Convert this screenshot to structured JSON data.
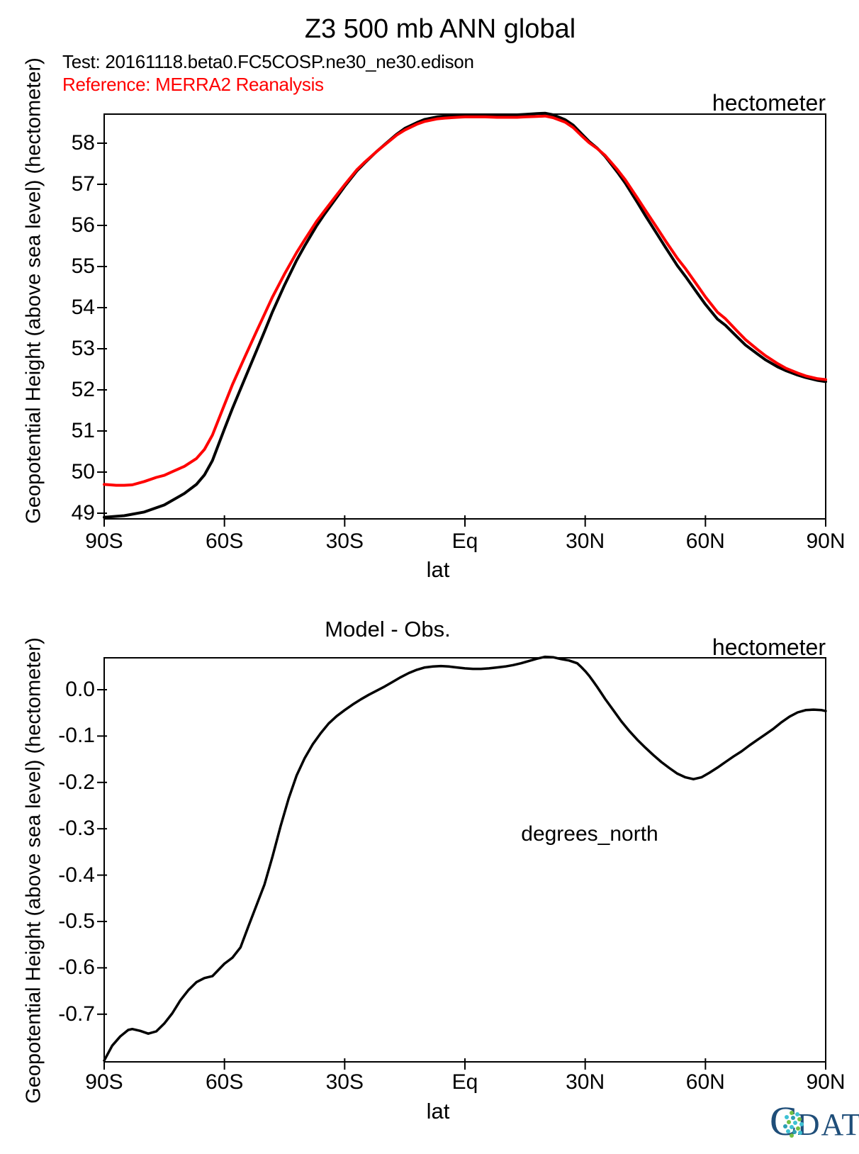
{
  "page": {
    "title": "Z3 500 mb ANN global",
    "test_label": "Test: 20161118.beta0.FC5COSP.ne30_ne30.edison",
    "reference_label": "Reference: MERRA2 Reanalysis",
    "colors": {
      "test": "#000000",
      "reference": "#ff0000",
      "cdat_navy": "#1f4e79",
      "cdat_cyan": "#3ec1d3",
      "cdat_green": "#72bf44",
      "cdat_teal": "#2d9fb3"
    }
  },
  "logo": {
    "c": "C",
    "rest": "DAT"
  },
  "chart_data": [
    {
      "type": "line",
      "title": "Z3 500 mb ANN global",
      "unit_label": "hectometer",
      "xlabel": "lat",
      "ylabel": "Geopotential Height (above sea level) (hectometer)",
      "grid": false,
      "legend_position": "none",
      "xlim": [
        -90,
        90
      ],
      "ylim": [
        48.862,
        58.707
      ],
      "x_tick_labels": [
        "90S",
        "60S",
        "30S",
        "Eq",
        "30N",
        "60N",
        "90N"
      ],
      "x_tick_values": [
        -90,
        -60,
        -30,
        0,
        30,
        60,
        90
      ],
      "y_tick_labels": [
        "58",
        "57",
        "56",
        "55",
        "54",
        "53",
        "52",
        "51",
        "50",
        "49"
      ],
      "y_tick_values": [
        58,
        57,
        56,
        55,
        54,
        53,
        52,
        51,
        50,
        49
      ],
      "series": [
        {
          "name": "Test: 20161118.beta0.FC5COSP.ne30_ne30.edison",
          "key": "test-curve",
          "color": "#000000",
          "points": [
            [
              -90,
              48.9
            ],
            [
              -85,
              48.94
            ],
            [
              -80,
              49.03
            ],
            [
              -75,
              49.2
            ],
            [
              -70,
              49.48
            ],
            [
              -67,
              49.7
            ],
            [
              -65,
              49.93
            ],
            [
              -63,
              50.28
            ],
            [
              -60,
              51.05
            ],
            [
              -58,
              51.55
            ],
            [
              -55,
              52.25
            ],
            [
              -52,
              52.95
            ],
            [
              -50,
              53.42
            ],
            [
              -48,
              53.9
            ],
            [
              -45,
              54.55
            ],
            [
              -42,
              55.15
            ],
            [
              -40,
              55.5
            ],
            [
              -37,
              55.99
            ],
            [
              -35,
              56.28
            ],
            [
              -32,
              56.68
            ],
            [
              -30,
              56.95
            ],
            [
              -27,
              57.32
            ],
            [
              -25,
              57.52
            ],
            [
              -22,
              57.8
            ],
            [
              -20,
              57.97
            ],
            [
              -17,
              58.22
            ],
            [
              -15,
              58.36
            ],
            [
              -12,
              58.5
            ],
            [
              -10,
              58.58
            ],
            [
              -7,
              58.64
            ],
            [
              -5,
              58.66
            ],
            [
              -2,
              58.68
            ],
            [
              0,
              58.69
            ],
            [
              3,
              58.69
            ],
            [
              5,
              58.69
            ],
            [
              8,
              58.68
            ],
            [
              10,
              58.68
            ],
            [
              13,
              58.69
            ],
            [
              15,
              58.7
            ],
            [
              18,
              58.72
            ],
            [
              20,
              58.73
            ],
            [
              22,
              58.69
            ],
            [
              25,
              58.57
            ],
            [
              27,
              58.44
            ],
            [
              29,
              58.24
            ],
            [
              31,
              58.04
            ],
            [
              33,
              57.88
            ],
            [
              35,
              57.68
            ],
            [
              38,
              57.3
            ],
            [
              40,
              57.03
            ],
            [
              43,
              56.56
            ],
            [
              45,
              56.24
            ],
            [
              48,
              55.78
            ],
            [
              50,
              55.47
            ],
            [
              53,
              55.02
            ],
            [
              55,
              54.76
            ],
            [
              58,
              54.35
            ],
            [
              60,
              54.08
            ],
            [
              63,
              53.72
            ],
            [
              65,
              53.57
            ],
            [
              68,
              53.28
            ],
            [
              70,
              53.09
            ],
            [
              73,
              52.87
            ],
            [
              75,
              52.73
            ],
            [
              78,
              52.56
            ],
            [
              80,
              52.47
            ],
            [
              83,
              52.36
            ],
            [
              85,
              52.3
            ],
            [
              88,
              52.23
            ],
            [
              90,
              52.2
            ]
          ]
        },
        {
          "name": "Reference: MERRA2 Reanalysis",
          "key": "reference-curve",
          "color": "#ff0000",
          "points": [
            [
              -90,
              49.7
            ],
            [
              -87,
              49.68
            ],
            [
              -85,
              49.68
            ],
            [
              -83,
              49.69
            ],
            [
              -80,
              49.77
            ],
            [
              -77,
              49.87
            ],
            [
              -75,
              49.92
            ],
            [
              -73,
              50.01
            ],
            [
              -70,
              50.14
            ],
            [
              -67,
              50.33
            ],
            [
              -65,
              50.55
            ],
            [
              -63,
              50.9
            ],
            [
              -60,
              51.64
            ],
            [
              -58,
              52.13
            ],
            [
              -55,
              52.78
            ],
            [
              -52,
              53.42
            ],
            [
              -50,
              53.84
            ],
            [
              -48,
              54.26
            ],
            [
              -45,
              54.82
            ],
            [
              -42,
              55.34
            ],
            [
              -40,
              55.65
            ],
            [
              -37,
              56.1
            ],
            [
              -35,
              56.36
            ],
            [
              -32,
              56.74
            ],
            [
              -30,
              56.99
            ],
            [
              -27,
              57.35
            ],
            [
              -25,
              57.54
            ],
            [
              -22,
              57.8
            ],
            [
              -20,
              57.96
            ],
            [
              -17,
              58.2
            ],
            [
              -15,
              58.32
            ],
            [
              -12,
              58.46
            ],
            [
              -10,
              58.53
            ],
            [
              -7,
              58.59
            ],
            [
              -5,
              58.61
            ],
            [
              -2,
              58.63
            ],
            [
              0,
              58.64
            ],
            [
              3,
              58.64
            ],
            [
              5,
              58.64
            ],
            [
              8,
              58.63
            ],
            [
              10,
              58.63
            ],
            [
              13,
              58.63
            ],
            [
              15,
              58.64
            ],
            [
              18,
              58.65
            ],
            [
              20,
              58.66
            ],
            [
              22,
              58.62
            ],
            [
              25,
              58.51
            ],
            [
              27,
              58.38
            ],
            [
              29,
              58.19
            ],
            [
              31,
              58.01
            ],
            [
              33,
              57.87
            ],
            [
              35,
              57.7
            ],
            [
              38,
              57.36
            ],
            [
              40,
              57.11
            ],
            [
              43,
              56.67
            ],
            [
              45,
              56.37
            ],
            [
              48,
              55.93
            ],
            [
              50,
              55.63
            ],
            [
              53,
              55.2
            ],
            [
              55,
              54.95
            ],
            [
              58,
              54.54
            ],
            [
              60,
              54.26
            ],
            [
              63,
              53.89
            ],
            [
              65,
              53.73
            ],
            [
              68,
              53.42
            ],
            [
              70,
              53.22
            ],
            [
              73,
              52.98
            ],
            [
              75,
              52.83
            ],
            [
              78,
              52.64
            ],
            [
              80,
              52.53
            ],
            [
              83,
              52.41
            ],
            [
              85,
              52.34
            ],
            [
              88,
              52.27
            ],
            [
              90,
              52.25
            ]
          ]
        }
      ]
    },
    {
      "type": "line",
      "title": "Model - Obs.",
      "unit_label": "hectometer",
      "xlabel": "lat",
      "ylabel": "Geopotential Height (above sea level) (hectometer)",
      "annotation": "degrees_north",
      "grid": false,
      "legend_position": "none",
      "xlim": [
        -90,
        90
      ],
      "ylim": [
        -0.8028,
        0.0688
      ],
      "x_tick_labels": [
        "90S",
        "60S",
        "30S",
        "Eq",
        "30N",
        "60N",
        "90N"
      ],
      "x_tick_values": [
        -90,
        -60,
        -30,
        0,
        30,
        60,
        90
      ],
      "y_tick_labels": [
        "0.0",
        "-0.1",
        "-0.2",
        "-0.3",
        "-0.4",
        "-0.5",
        "-0.6",
        "-0.7"
      ],
      "y_tick_values": [
        0,
        -0.1,
        -0.2,
        -0.3,
        -0.4,
        -0.5,
        -0.6,
        -0.7
      ],
      "series": [
        {
          "name": "Model - Obs.",
          "key": "difference-curve",
          "color": "#000000",
          "points": [
            [
              -90,
              -0.8
            ],
            [
              -88,
              -0.768
            ],
            [
              -86,
              -0.748
            ],
            [
              -84,
              -0.734
            ],
            [
              -83,
              -0.732
            ],
            [
              -81,
              -0.736
            ],
            [
              -79,
              -0.742
            ],
            [
              -77,
              -0.737
            ],
            [
              -75,
              -0.72
            ],
            [
              -73,
              -0.698
            ],
            [
              -71,
              -0.67
            ],
            [
              -69,
              -0.648
            ],
            [
              -67,
              -0.631
            ],
            [
              -65,
              -0.622
            ],
            [
              -63,
              -0.618
            ],
            [
              -61,
              -0.6
            ],
            [
              -60,
              -0.591
            ],
            [
              -58,
              -0.578
            ],
            [
              -56,
              -0.556
            ],
            [
              -54,
              -0.51
            ],
            [
              -52,
              -0.465
            ],
            [
              -50,
              -0.42
            ],
            [
              -48,
              -0.36
            ],
            [
              -46,
              -0.295
            ],
            [
              -44,
              -0.235
            ],
            [
              -42,
              -0.185
            ],
            [
              -40,
              -0.148
            ],
            [
              -38,
              -0.118
            ],
            [
              -36,
              -0.094
            ],
            [
              -34,
              -0.073
            ],
            [
              -32,
              -0.057
            ],
            [
              -30,
              -0.044
            ],
            [
              -28,
              -0.032
            ],
            [
              -26,
              -0.021
            ],
            [
              -24,
              -0.011
            ],
            [
              -22,
              -0.002
            ],
            [
              -20,
              0.007
            ],
            [
              -18,
              0.017
            ],
            [
              -16,
              0.027
            ],
            [
              -14,
              0.036
            ],
            [
              -12,
              0.043
            ],
            [
              -10,
              0.048
            ],
            [
              -8,
              0.05
            ],
            [
              -6,
              0.051
            ],
            [
              -4,
              0.05
            ],
            [
              -2,
              0.048
            ],
            [
              0,
              0.046
            ],
            [
              2,
              0.045
            ],
            [
              4,
              0.045
            ],
            [
              6,
              0.046
            ],
            [
              8,
              0.048
            ],
            [
              10,
              0.05
            ],
            [
              12,
              0.053
            ],
            [
              14,
              0.057
            ],
            [
              16,
              0.062
            ],
            [
              18,
              0.067
            ],
            [
              20,
              0.071
            ],
            [
              22,
              0.07
            ],
            [
              24,
              0.066
            ],
            [
              26,
              0.063
            ],
            [
              28,
              0.057
            ],
            [
              29,
              0.049
            ],
            [
              30,
              0.04
            ],
            [
              31,
              0.03
            ],
            [
              32,
              0.018
            ],
            [
              33,
              0.006
            ],
            [
              34,
              -0.007
            ],
            [
              35,
              -0.02
            ],
            [
              37,
              -0.044
            ],
            [
              39,
              -0.068
            ],
            [
              41,
              -0.089
            ],
            [
              43,
              -0.108
            ],
            [
              45,
              -0.125
            ],
            [
              47,
              -0.141
            ],
            [
              49,
              -0.156
            ],
            [
              51,
              -0.169
            ],
            [
              53,
              -0.181
            ],
            [
              55,
              -0.189
            ],
            [
              57,
              -0.193
            ],
            [
              59,
              -0.189
            ],
            [
              61,
              -0.179
            ],
            [
              63,
              -0.168
            ],
            [
              65,
              -0.156
            ],
            [
              67,
              -0.144
            ],
            [
              69,
              -0.133
            ],
            [
              71,
              -0.12
            ],
            [
              73,
              -0.108
            ],
            [
              75,
              -0.096
            ],
            [
              77,
              -0.084
            ],
            [
              79,
              -0.07
            ],
            [
              81,
              -0.058
            ],
            [
              83,
              -0.049
            ],
            [
              85,
              -0.044
            ],
            [
              87,
              -0.043
            ],
            [
              89,
              -0.044
            ],
            [
              90,
              -0.046
            ]
          ]
        }
      ]
    }
  ]
}
